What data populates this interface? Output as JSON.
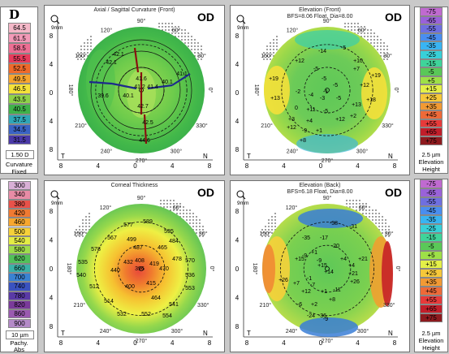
{
  "legends": {
    "curvature": {
      "scale": [
        {
          "v": "64.5",
          "c": "#f4b8c8"
        },
        {
          "v": "61.5",
          "c": "#f39ab8"
        },
        {
          "v": "58.5",
          "c": "#ee6f94"
        },
        {
          "v": "55.5",
          "c": "#e83b5c"
        },
        {
          "v": "52.5",
          "c": "#f06a2a"
        },
        {
          "v": "49.5",
          "c": "#f8a52f"
        },
        {
          "v": "46.5",
          "c": "#f5e23a"
        },
        {
          "v": "43.5",
          "c": "#8fd24a"
        },
        {
          "v": "40.5",
          "c": "#3fb24a"
        },
        {
          "v": "37.5",
          "c": "#2fa7b8"
        },
        {
          "v": "34.5",
          "c": "#3a63c4"
        },
        {
          "v": "31.5",
          "c": "#4a39a8"
        }
      ],
      "step": "1.50 D",
      "label": "Curvature",
      "mode": "Fixed"
    },
    "elev_front": {
      "scale": [
        {
          "v": "-75",
          "c": "#c06ad0"
        },
        {
          "v": "-65",
          "c": "#9a62d9"
        },
        {
          "v": "-55",
          "c": "#6f6fe0"
        },
        {
          "v": "-45",
          "c": "#4a8ef0"
        },
        {
          "v": "-35",
          "c": "#39b4f2"
        },
        {
          "v": "-25",
          "c": "#38d0d8"
        },
        {
          "v": "-15",
          "c": "#3fd49a"
        },
        {
          "v": "-5",
          "c": "#5ac858"
        },
        {
          "v": "+5",
          "c": "#9ee048"
        },
        {
          "v": "+15",
          "c": "#e4f048"
        },
        {
          "v": "+25",
          "c": "#f6c83a"
        },
        {
          "v": "+35",
          "c": "#f29a34"
        },
        {
          "v": "+45",
          "c": "#ee6a38"
        },
        {
          "v": "+55",
          "c": "#e73a3a"
        },
        {
          "v": "+65",
          "c": "#c21e2a"
        },
        {
          "v": "+75",
          "c": "#8e1a1e"
        }
      ],
      "step": "2.5 µm",
      "label": "Elevation",
      "mode": "Height"
    },
    "pachy": {
      "scale": [
        {
          "v": "300",
          "c": "#d9b0d6"
        },
        {
          "v": "340",
          "c": "#e88ca6"
        },
        {
          "v": "380",
          "c": "#e8524a"
        },
        {
          "v": "420",
          "c": "#f07a32"
        },
        {
          "v": "460",
          "c": "#f7a72e"
        },
        {
          "v": "500",
          "c": "#f6d13a"
        },
        {
          "v": "540",
          "c": "#e4ec45"
        },
        {
          "v": "580",
          "c": "#9fdc4c"
        },
        {
          "v": "620",
          "c": "#52c05a"
        },
        {
          "v": "660",
          "c": "#3bb2a8"
        },
        {
          "v": "700",
          "c": "#3a82d2"
        },
        {
          "v": "740",
          "c": "#3a52c0"
        },
        {
          "v": "780",
          "c": "#5a3aa6"
        },
        {
          "v": "820",
          "c": "#7a3a9a"
        },
        {
          "v": "860",
          "c": "#9a5ab0"
        },
        {
          "v": "900",
          "c": "#b48ac8"
        }
      ],
      "step": "10 µm",
      "label": "Pachy.",
      "mode": "Abs"
    },
    "elev_back": {
      "scale": [
        {
          "v": "-75",
          "c": "#c06ad0"
        },
        {
          "v": "-65",
          "c": "#9a62d9"
        },
        {
          "v": "-55",
          "c": "#6f6fe0"
        },
        {
          "v": "-45",
          "c": "#4a8ef0"
        },
        {
          "v": "-35",
          "c": "#39b4f2"
        },
        {
          "v": "-25",
          "c": "#38d0d8"
        },
        {
          "v": "-15",
          "c": "#3fd49a"
        },
        {
          "v": "-5",
          "c": "#5ac858"
        },
        {
          "v": "+5",
          "c": "#9ee048"
        },
        {
          "v": "+15",
          "c": "#e4f048"
        },
        {
          "v": "+25",
          "c": "#f6c83a"
        },
        {
          "v": "+35",
          "c": "#f29a34"
        },
        {
          "v": "+45",
          "c": "#ee6a38"
        },
        {
          "v": "+55",
          "c": "#e73a3a"
        },
        {
          "v": "+65",
          "c": "#c21e2a"
        },
        {
          "v": "+75",
          "c": "#8e1a1e"
        }
      ],
      "step": "2.5 µm",
      "label": "Elevation",
      "mode": "Height"
    }
  },
  "panels": {
    "axial": {
      "title": "Axial / Sagittal Curvature (Front)",
      "subtitle": "",
      "eye": "OD",
      "values": [
        "42.1",
        "41.6",
        "41.2",
        "42.1",
        "39.6",
        "40.1",
        "41.4",
        "40.1",
        "41.1",
        "42.7",
        "42.5",
        "44.6"
      ]
    },
    "elev_front": {
      "title": "Elevation (Front)",
      "subtitle": "BFS=8.06 Float, Dia=8.00",
      "eye": "OD",
      "values": [
        "-14",
        "-5",
        "+10",
        "+12",
        "-5",
        "+7",
        "+19",
        "-5",
        "-5",
        "+19",
        "+12",
        "-2",
        "-4",
        "-3",
        "+13",
        "-5",
        "-1",
        "+18",
        "+13",
        "0",
        "+11",
        "-5",
        "+12",
        "+2",
        "+3",
        "+4",
        "+12",
        "-9",
        "+1",
        "+8"
      ]
    },
    "pachy": {
      "title": "Corneal Thickness",
      "subtitle": "",
      "eye": "OD",
      "values": [
        "577",
        "589",
        "595",
        "567",
        "499",
        "487",
        "465",
        "484",
        "578",
        "535",
        "432",
        "408",
        "419",
        "478",
        "570",
        "540",
        "440",
        "396",
        "470",
        "536",
        "512",
        "400",
        "415",
        "553",
        "514",
        "464",
        "541",
        "532",
        "552",
        "554"
      ]
    },
    "elev_back": {
      "title": "Elevation (Back)",
      "subtitle": "BFS=6.18 Float, Dia=8.00",
      "eye": "OD",
      "values": [
        "-38",
        "-31",
        "-35",
        "-17",
        "-20",
        "+1",
        "-9",
        "-9",
        "+4",
        "+15",
        "+4",
        "+21",
        "+15",
        "+26",
        "-1",
        "+14",
        "+21",
        "+7",
        "-7",
        "+26",
        "+12",
        "+1",
        "-11",
        "-6",
        "+2",
        "+8",
        "-36",
        "-9",
        "-24"
      ]
    }
  },
  "angles": {
    "a90": "90°",
    "a60": "60°",
    "a120": "120°",
    "a30": "30°",
    "a150": "150°",
    "a0": "0°",
    "a180": "180°",
    "a210": "210°",
    "a330": "330°",
    "a240": "240°",
    "a270": "270°",
    "a300": "300°"
  },
  "axis": {
    "xticks": [
      "8",
      "4",
      "0",
      "4",
      "8"
    ],
    "yticks": [
      "8",
      "4",
      "0",
      "4",
      "8"
    ],
    "temporal": "T",
    "nasal": "N"
  },
  "icons": {
    "zoom": "magnifier-icon",
    "zoom_label": "9mm"
  },
  "top_logo": "D"
}
